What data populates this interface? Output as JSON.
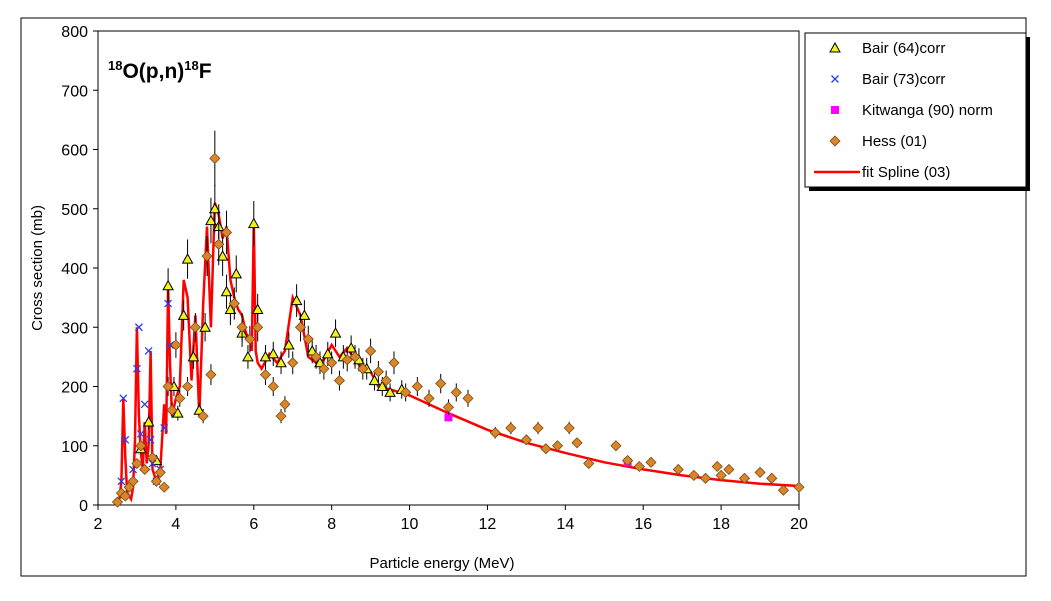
{
  "chart_data": {
    "type": "scatter",
    "title": {
      "main": "O(p,n)",
      "sup1": "18",
      "sup2": "18",
      "end": "F"
    },
    "xlabel": "Particle energy (MeV)",
    "ylabel": "Cross section (mb)",
    "xlim": [
      2,
      20
    ],
    "ylim": [
      0,
      800
    ],
    "xticks": [
      2,
      4,
      6,
      8,
      10,
      12,
      14,
      16,
      18,
      20
    ],
    "yticks": [
      0,
      100,
      200,
      300,
      400,
      500,
      600,
      700,
      800
    ],
    "grid": false,
    "legend_position": "top-right",
    "colors": {
      "bair64": "#f2f21a",
      "bair73": "#2a3cf0",
      "kitwanga": "#ff00ff",
      "hess": "#d9862a",
      "spline": "#ff0000"
    },
    "series": [
      {
        "name": "Bair (64)corr",
        "marker": "triangle",
        "color": "#f2f21a",
        "x": [
          3.1,
          3.3,
          3.5,
          3.8,
          3.95,
          4.05,
          4.2,
          4.3,
          4.45,
          4.6,
          4.75,
          4.9,
          5.0,
          5.1,
          5.2,
          5.3,
          5.4,
          5.55,
          5.7,
          5.85,
          6.0,
          6.1,
          6.3,
          6.5,
          6.7,
          6.9,
          7.1,
          7.3,
          7.5,
          7.7,
          7.9,
          8.1,
          8.3,
          8.5,
          8.7,
          8.9,
          9.1,
          9.3,
          9.5,
          9.8
        ],
        "y": [
          95,
          140,
          75,
          370,
          200,
          155,
          320,
          415,
          250,
          160,
          300,
          480,
          500,
          470,
          420,
          360,
          330,
          390,
          290,
          250,
          475,
          330,
          250,
          255,
          240,
          270,
          345,
          320,
          260,
          240,
          255,
          290,
          250,
          265,
          245,
          230,
          210,
          200,
          190,
          195
        ]
      },
      {
        "name": "Bair (73)corr",
        "marker": "x",
        "color": "#2a3cf0",
        "x": [
          2.6,
          2.65,
          2.7,
          2.9,
          3.0,
          3.05,
          3.1,
          3.2,
          3.3,
          3.35,
          3.4,
          3.5,
          3.6,
          3.7,
          3.8,
          3.85
        ],
        "y": [
          40,
          180,
          110,
          60,
          230,
          300,
          120,
          170,
          260,
          110,
          70,
          40,
          60,
          130,
          340,
          270
        ]
      },
      {
        "name": "Kitwanga (90) norm",
        "marker": "square",
        "color": "#ff00ff",
        "x": [
          11.0,
          15.6
        ],
        "y": [
          148,
          72
        ]
      },
      {
        "name": "Hess (01)",
        "marker": "diamond",
        "color": "#d9862a",
        "x": [
          2.5,
          2.6,
          2.7,
          2.8,
          2.9,
          3.0,
          3.1,
          3.2,
          3.4,
          3.5,
          3.6,
          3.7,
          3.8,
          3.9,
          4.0,
          4.1,
          4.3,
          4.5,
          4.7,
          4.8,
          4.9,
          5.0,
          5.1,
          5.3,
          5.5,
          5.7,
          5.9,
          6.1,
          6.3,
          6.5,
          6.7,
          6.8,
          7.0,
          7.2,
          7.4,
          7.6,
          7.8,
          8.0,
          8.2,
          8.4,
          8.6,
          8.8,
          9.0,
          9.2,
          9.4,
          9.6,
          9.9,
          10.2,
          10.5,
          10.8,
          11.0,
          11.2,
          11.5,
          12.2,
          12.6,
          13.0,
          13.3,
          13.5,
          13.8,
          14.1,
          14.3,
          14.6,
          15.3,
          15.6,
          15.9,
          16.2,
          16.9,
          17.3,
          17.6,
          17.9,
          18.0,
          18.2,
          18.6,
          19.0,
          19.3,
          19.6,
          20.0
        ],
        "y": [
          5,
          20,
          15,
          30,
          40,
          70,
          100,
          60,
          80,
          40,
          55,
          30,
          200,
          160,
          270,
          180,
          200,
          300,
          150,
          420,
          220,
          585,
          440,
          460,
          340,
          300,
          280,
          300,
          220,
          200,
          150,
          170,
          240,
          300,
          280,
          250,
          230,
          240,
          210,
          245,
          250,
          230,
          260,
          225,
          210,
          240,
          190,
          200,
          180,
          205,
          165,
          190,
          180,
          122,
          130,
          110,
          130,
          95,
          100,
          130,
          105,
          70,
          100,
          75,
          65,
          72,
          60,
          50,
          45,
          65,
          50,
          60,
          45,
          55,
          45,
          25,
          30
        ]
      },
      {
        "name": "fit Spline (03)",
        "marker": "line",
        "color": "#ff0000",
        "x": [
          2.55,
          2.6,
          2.65,
          2.7,
          2.75,
          2.8,
          2.85,
          2.9,
          2.95,
          3.0,
          3.05,
          3.1,
          3.15,
          3.2,
          3.25,
          3.3,
          3.35,
          3.4,
          3.5,
          3.6,
          3.7,
          3.75,
          3.8,
          3.85,
          3.9,
          4.0,
          4.1,
          4.2,
          4.3,
          4.4,
          4.5,
          4.6,
          4.7,
          4.8,
          4.9,
          5.0,
          5.1,
          5.2,
          5.3,
          5.4,
          5.5,
          5.6,
          5.7,
          5.8,
          5.9,
          5.95,
          6.0,
          6.05,
          6.1,
          6.2,
          6.4,
          6.6,
          6.8,
          7.0,
          7.2,
          7.4,
          7.6,
          7.8,
          8.0,
          8.2,
          8.4,
          8.6,
          8.8,
          9.0,
          9.2,
          9.5,
          10.0,
          11.0,
          12.0,
          13.0,
          14.0,
          15.0,
          16.0,
          17.0,
          18.0,
          19.0,
          20.0
        ],
        "y": [
          10,
          40,
          180,
          80,
          20,
          15,
          10,
          30,
          110,
          300,
          150,
          90,
          60,
          140,
          70,
          100,
          260,
          60,
          40,
          60,
          170,
          120,
          370,
          240,
          150,
          180,
          200,
          380,
          350,
          210,
          320,
          150,
          340,
          470,
          300,
          510,
          490,
          450,
          470,
          380,
          350,
          330,
          320,
          290,
          280,
          260,
          480,
          260,
          240,
          230,
          255,
          240,
          260,
          350,
          320,
          250,
          240,
          245,
          270,
          250,
          265,
          245,
          230,
          225,
          200,
          195,
          185,
          155,
          127,
          105,
          88,
          72,
          60,
          50,
          42,
          36,
          32
        ]
      }
    ]
  }
}
